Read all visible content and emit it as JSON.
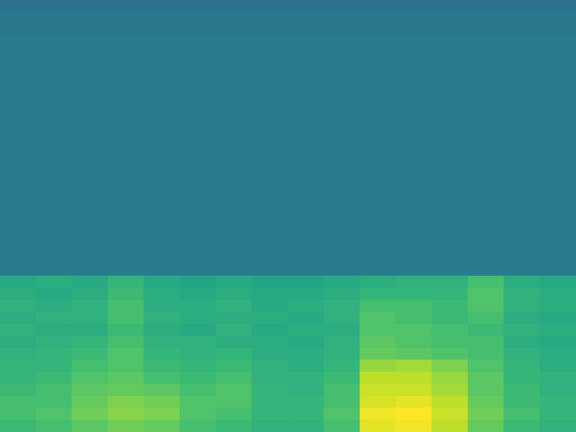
{
  "chart_data": {
    "type": "heatmap",
    "tick_labels": false,
    "zlim": [
      0,
      1
    ],
    "cells": [
      [
        0.38,
        0.38,
        0.38,
        0.38,
        0.38,
        0.38,
        0.38,
        0.38,
        0.38,
        0.38,
        0.38,
        0.38,
        0.38,
        0.38,
        0.38,
        0.38
      ],
      [
        0.4,
        0.4,
        0.4,
        0.4,
        0.4,
        0.4,
        0.4,
        0.4,
        0.4,
        0.4,
        0.4,
        0.4,
        0.4,
        0.4,
        0.4,
        0.4
      ],
      [
        0.4,
        0.4,
        0.4,
        0.4,
        0.4,
        0.4,
        0.4,
        0.4,
        0.4,
        0.4,
        0.4,
        0.4,
        0.4,
        0.4,
        0.4,
        0.4
      ],
      [
        0.42,
        0.42,
        0.42,
        0.42,
        0.42,
        0.42,
        0.42,
        0.42,
        0.42,
        0.42,
        0.42,
        0.42,
        0.42,
        0.42,
        0.42,
        0.42
      ],
      [
        0.42,
        0.42,
        0.42,
        0.42,
        0.42,
        0.42,
        0.42,
        0.42,
        0.42,
        0.42,
        0.42,
        0.42,
        0.42,
        0.42,
        0.42,
        0.42
      ],
      [
        0.42,
        0.42,
        0.42,
        0.42,
        0.42,
        0.42,
        0.42,
        0.42,
        0.42,
        0.42,
        0.42,
        0.42,
        0.42,
        0.42,
        0.42,
        0.42
      ],
      [
        0.42,
        0.42,
        0.42,
        0.42,
        0.42,
        0.42,
        0.42,
        0.42,
        0.42,
        0.42,
        0.42,
        0.42,
        0.42,
        0.42,
        0.42,
        0.42
      ],
      [
        0.42,
        0.42,
        0.42,
        0.42,
        0.42,
        0.42,
        0.42,
        0.42,
        0.42,
        0.42,
        0.42,
        0.42,
        0.42,
        0.42,
        0.42,
        0.42
      ],
      [
        0.42,
        0.42,
        0.42,
        0.42,
        0.42,
        0.42,
        0.42,
        0.42,
        0.42,
        0.42,
        0.42,
        0.42,
        0.42,
        0.42,
        0.42,
        0.42
      ],
      [
        0.42,
        0.42,
        0.42,
        0.42,
        0.42,
        0.42,
        0.42,
        0.42,
        0.42,
        0.42,
        0.42,
        0.42,
        0.42,
        0.42,
        0.42,
        0.42
      ],
      [
        0.42,
        0.42,
        0.42,
        0.42,
        0.42,
        0.42,
        0.42,
        0.42,
        0.42,
        0.42,
        0.42,
        0.42,
        0.42,
        0.42,
        0.42,
        0.42
      ],
      [
        0.42,
        0.42,
        0.42,
        0.42,
        0.42,
        0.42,
        0.42,
        0.42,
        0.42,
        0.42,
        0.42,
        0.42,
        0.42,
        0.42,
        0.42,
        0.42
      ],
      [
        0.42,
        0.42,
        0.42,
        0.42,
        0.42,
        0.42,
        0.42,
        0.42,
        0.42,
        0.42,
        0.42,
        0.42,
        0.42,
        0.42,
        0.42,
        0.42
      ],
      [
        0.42,
        0.42,
        0.42,
        0.42,
        0.42,
        0.42,
        0.42,
        0.42,
        0.42,
        0.42,
        0.42,
        0.42,
        0.42,
        0.42,
        0.42,
        0.42
      ],
      [
        0.42,
        0.42,
        0.42,
        0.42,
        0.42,
        0.42,
        0.42,
        0.42,
        0.42,
        0.42,
        0.42,
        0.42,
        0.42,
        0.42,
        0.42,
        0.42
      ],
      [
        0.42,
        0.42,
        0.42,
        0.42,
        0.42,
        0.42,
        0.42,
        0.42,
        0.42,
        0.42,
        0.42,
        0.42,
        0.42,
        0.42,
        0.42,
        0.42
      ],
      [
        0.42,
        0.42,
        0.42,
        0.42,
        0.42,
        0.42,
        0.42,
        0.42,
        0.42,
        0.42,
        0.42,
        0.42,
        0.42,
        0.42,
        0.42,
        0.42
      ],
      [
        0.42,
        0.42,
        0.42,
        0.42,
        0.42,
        0.42,
        0.42,
        0.42,
        0.42,
        0.42,
        0.42,
        0.42,
        0.42,
        0.42,
        0.42,
        0.42
      ],
      [
        0.42,
        0.42,
        0.42,
        0.42,
        0.42,
        0.42,
        0.42,
        0.42,
        0.42,
        0.42,
        0.42,
        0.42,
        0.42,
        0.42,
        0.42,
        0.42
      ],
      [
        0.42,
        0.42,
        0.42,
        0.42,
        0.42,
        0.42,
        0.42,
        0.42,
        0.42,
        0.42,
        0.42,
        0.42,
        0.42,
        0.42,
        0.42,
        0.42
      ],
      [
        0.42,
        0.42,
        0.42,
        0.42,
        0.42,
        0.42,
        0.42,
        0.42,
        0.42,
        0.42,
        0.42,
        0.42,
        0.42,
        0.42,
        0.42,
        0.42
      ],
      [
        0.42,
        0.42,
        0.42,
        0.42,
        0.42,
        0.42,
        0.42,
        0.42,
        0.42,
        0.42,
        0.42,
        0.42,
        0.42,
        0.42,
        0.42,
        0.42
      ],
      [
        0.42,
        0.42,
        0.42,
        0.42,
        0.42,
        0.42,
        0.42,
        0.42,
        0.42,
        0.42,
        0.42,
        0.42,
        0.42,
        0.42,
        0.42,
        0.42
      ],
      [
        0.6,
        0.62,
        0.6,
        0.66,
        0.6,
        0.58,
        0.6,
        0.58,
        0.58,
        0.6,
        0.62,
        0.64,
        0.64,
        0.7,
        0.62,
        0.6
      ],
      [
        0.62,
        0.6,
        0.62,
        0.68,
        0.62,
        0.6,
        0.62,
        0.6,
        0.6,
        0.62,
        0.66,
        0.66,
        0.66,
        0.72,
        0.64,
        0.62
      ],
      [
        0.64,
        0.62,
        0.64,
        0.7,
        0.62,
        0.62,
        0.64,
        0.6,
        0.62,
        0.64,
        0.7,
        0.7,
        0.68,
        0.72,
        0.64,
        0.62
      ],
      [
        0.62,
        0.64,
        0.64,
        0.7,
        0.64,
        0.62,
        0.62,
        0.62,
        0.6,
        0.64,
        0.72,
        0.7,
        0.68,
        0.7,
        0.62,
        0.6
      ],
      [
        0.64,
        0.62,
        0.62,
        0.68,
        0.62,
        0.6,
        0.64,
        0.6,
        0.62,
        0.62,
        0.72,
        0.72,
        0.7,
        0.68,
        0.64,
        0.62
      ],
      [
        0.62,
        0.64,
        0.66,
        0.7,
        0.64,
        0.64,
        0.62,
        0.62,
        0.6,
        0.64,
        0.74,
        0.72,
        0.7,
        0.7,
        0.62,
        0.6
      ],
      [
        0.64,
        0.66,
        0.68,
        0.72,
        0.66,
        0.64,
        0.66,
        0.62,
        0.62,
        0.64,
        0.76,
        0.74,
        0.72,
        0.7,
        0.64,
        0.62
      ],
      [
        0.66,
        0.66,
        0.7,
        0.72,
        0.68,
        0.66,
        0.68,
        0.64,
        0.62,
        0.66,
        0.84,
        0.86,
        0.8,
        0.72,
        0.66,
        0.62
      ],
      [
        0.66,
        0.68,
        0.72,
        0.74,
        0.7,
        0.68,
        0.7,
        0.64,
        0.64,
        0.68,
        0.9,
        0.9,
        0.84,
        0.74,
        0.66,
        0.64
      ],
      [
        0.68,
        0.7,
        0.74,
        0.76,
        0.74,
        0.7,
        0.72,
        0.66,
        0.64,
        0.7,
        0.92,
        0.92,
        0.86,
        0.74,
        0.68,
        0.64
      ],
      [
        0.7,
        0.7,
        0.76,
        0.8,
        0.78,
        0.72,
        0.72,
        0.66,
        0.66,
        0.7,
        0.94,
        0.96,
        0.9,
        0.76,
        0.68,
        0.66
      ],
      [
        0.7,
        0.72,
        0.78,
        0.82,
        0.8,
        0.72,
        0.7,
        0.66,
        0.66,
        0.72,
        0.98,
        1.0,
        0.92,
        0.78,
        0.7,
        0.66
      ],
      [
        0.68,
        0.7,
        0.74,
        0.78,
        0.76,
        0.7,
        0.68,
        0.64,
        0.64,
        0.7,
        0.96,
        0.98,
        0.9,
        0.76,
        0.68,
        0.64
      ]
    ]
  }
}
